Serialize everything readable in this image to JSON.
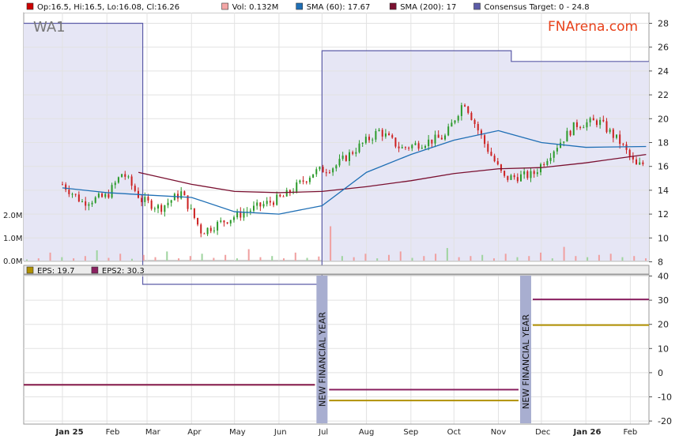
{
  "chart_data": [
    {
      "type": "candlestick",
      "ticker": "WA1",
      "brand": "FNArena.com",
      "legend": [
        {
          "label": "Op:16.5, Hi:16.5, Lo:16.08, Cl:16.26",
          "color": "#cc0000"
        },
        {
          "label": "Vol: 0.132M",
          "color": "#f4a6a6"
        },
        {
          "label": "SMA (60): 17.67",
          "color": "#1f6fb5"
        },
        {
          "label": "SMA (200): 17",
          "color": "#7a1030"
        },
        {
          "label": "Consensus Target: 0 - 24.8",
          "color": "#5c5ca8"
        }
      ],
      "y_ticks": [
        "28",
        "26",
        "24",
        "22",
        "20",
        "18",
        "16",
        "14",
        "12",
        "10",
        "8"
      ],
      "ylim": [
        8,
        29
      ],
      "volume_ticks": [
        "2.0M",
        "1.0M",
        "0.0M"
      ],
      "x_ticks": [
        "Jan 25",
        "Feb",
        "Mar",
        "Apr",
        "May",
        "Jun",
        "Jul",
        "Aug",
        "Sep",
        "Oct",
        "Nov",
        "Dec",
        "Jan 26",
        "Feb"
      ],
      "price_series": [
        {
          "date": "2025-01-01",
          "value": 14.5
        },
        {
          "date": "2025-01-15",
          "value": 13.0
        },
        {
          "date": "2025-02-01",
          "value": 13.5
        },
        {
          "date": "2025-02-12",
          "value": 15.5
        },
        {
          "date": "2025-02-25",
          "value": 13.2
        },
        {
          "date": "2025-03-10",
          "value": 12.5
        },
        {
          "date": "2025-03-25",
          "value": 13.8
        },
        {
          "date": "2025-04-08",
          "value": 10.5
        },
        {
          "date": "2025-04-25",
          "value": 11.5
        },
        {
          "date": "2025-05-15",
          "value": 12.5
        },
        {
          "date": "2025-06-05",
          "value": 13.5
        },
        {
          "date": "2025-06-25",
          "value": 15.5
        },
        {
          "date": "2025-07-10",
          "value": 16.0
        },
        {
          "date": "2025-07-25",
          "value": 17.5
        },
        {
          "date": "2025-08-10",
          "value": 19.0
        },
        {
          "date": "2025-08-25",
          "value": 17.5
        },
        {
          "date": "2025-09-10",
          "value": 18.0
        },
        {
          "date": "2025-09-25",
          "value": 18.5
        },
        {
          "date": "2025-10-08",
          "value": 21.5
        },
        {
          "date": "2025-10-22",
          "value": 18.0
        },
        {
          "date": "2025-11-05",
          "value": 15.0
        },
        {
          "date": "2025-11-25",
          "value": 15.3
        },
        {
          "date": "2025-12-10",
          "value": 17.5
        },
        {
          "date": "2025-12-25",
          "value": 19.5
        },
        {
          "date": "2026-01-10",
          "value": 19.8
        },
        {
          "date": "2026-01-25",
          "value": 18.0
        },
        {
          "date": "2026-02-05",
          "value": 16.0
        },
        {
          "date": "2026-02-12",
          "value": 16.3
        }
      ],
      "sma60": [
        {
          "date": "2025-01-01",
          "value": 14.2
        },
        {
          "date": "2025-02-01",
          "value": 13.8
        },
        {
          "date": "2025-03-01",
          "value": 13.6
        },
        {
          "date": "2025-04-01",
          "value": 13.4
        },
        {
          "date": "2025-05-01",
          "value": 12.2
        },
        {
          "date": "2025-06-01",
          "value": 12.0
        },
        {
          "date": "2025-07-01",
          "value": 12.7
        },
        {
          "date": "2025-08-01",
          "value": 15.5
        },
        {
          "date": "2025-09-01",
          "value": 17.0
        },
        {
          "date": "2025-10-01",
          "value": 18.2
        },
        {
          "date": "2025-11-01",
          "value": 19.0
        },
        {
          "date": "2025-12-01",
          "value": 18.0
        },
        {
          "date": "2026-01-01",
          "value": 17.6
        },
        {
          "date": "2026-02-12",
          "value": 17.67
        }
      ],
      "sma200": [
        {
          "date": "2025-02-23",
          "value": 15.5
        },
        {
          "date": "2025-04-01",
          "value": 14.5
        },
        {
          "date": "2025-05-01",
          "value": 13.9
        },
        {
          "date": "2025-06-01",
          "value": 13.8
        },
        {
          "date": "2025-07-01",
          "value": 13.9
        },
        {
          "date": "2025-08-01",
          "value": 14.3
        },
        {
          "date": "2025-09-01",
          "value": 14.8
        },
        {
          "date": "2025-10-01",
          "value": 15.4
        },
        {
          "date": "2025-11-01",
          "value": 15.8
        },
        {
          "date": "2025-12-01",
          "value": 15.9
        },
        {
          "date": "2026-01-01",
          "value": 16.3
        },
        {
          "date": "2026-02-12",
          "value": 17.0
        }
      ],
      "consensus_target": [
        {
          "start": "2024-12-05",
          "end": "2025-02-26",
          "value": 28.0
        },
        {
          "start": "2025-02-26",
          "end": "2025-07-01",
          "value": 0
        },
        {
          "start": "2025-07-01",
          "end": "2025-11-10",
          "value": 25.7
        },
        {
          "start": "2025-11-10",
          "end": "2026-02-14",
          "value": 24.8
        }
      ],
      "volume_millions": [
        0.05,
        0.1,
        0.35,
        0.15,
        0.1,
        0.2,
        0.45,
        0.12,
        0.3,
        0.08,
        0.25,
        0.15,
        0.4,
        0.1,
        0.2,
        0.3,
        0.12,
        0.25,
        0.1,
        0.5,
        0.15,
        0.2,
        0.1,
        0.35,
        0.12,
        0.18,
        1.5,
        0.2,
        0.15,
        0.3,
        0.1,
        0.25,
        0.4,
        0.12,
        0.2,
        0.3,
        0.55,
        0.15,
        0.2,
        0.25,
        0.1,
        0.3,
        0.15,
        0.2,
        0.35,
        0.1,
        0.6,
        0.2,
        0.15,
        0.25,
        0.3,
        0.15,
        0.2,
        0.1
      ]
    },
    {
      "type": "step-line",
      "legend": [
        {
          "label": "EPS: 19.7",
          "color": "#b09000"
        },
        {
          "label": "EPS2: 30.3",
          "color": "#8a2060"
        }
      ],
      "y_ticks": [
        "40",
        "30",
        "20",
        "10",
        "0",
        "-10",
        "-20"
      ],
      "ylim": [
        -20,
        40
      ],
      "annotations": [
        {
          "label": "NEW FINANCIAL YEAR",
          "date": "2025-07-01"
        },
        {
          "label": "NEW FINANCIAL YEAR",
          "date": "2025-11-20"
        }
      ],
      "series": [
        {
          "name": "EPS",
          "color": "#b09000",
          "segments": [
            {
              "start": "2024-12-05",
              "end": "2025-07-01",
              "value": -5
            },
            {
              "start": "2025-07-01",
              "end": "2025-11-20",
              "value": -11.5
            },
            {
              "start": "2025-11-20",
              "end": "2026-02-14",
              "value": 19.7
            }
          ]
        },
        {
          "name": "EPS2",
          "color": "#8a2060",
          "segments": [
            {
              "start": "2024-12-05",
              "end": "2025-07-01",
              "value": -5
            },
            {
              "start": "2025-07-01",
              "end": "2025-11-20",
              "value": -7
            },
            {
              "start": "2025-11-20",
              "end": "2026-02-14",
              "value": 30.3
            }
          ]
        }
      ]
    }
  ]
}
